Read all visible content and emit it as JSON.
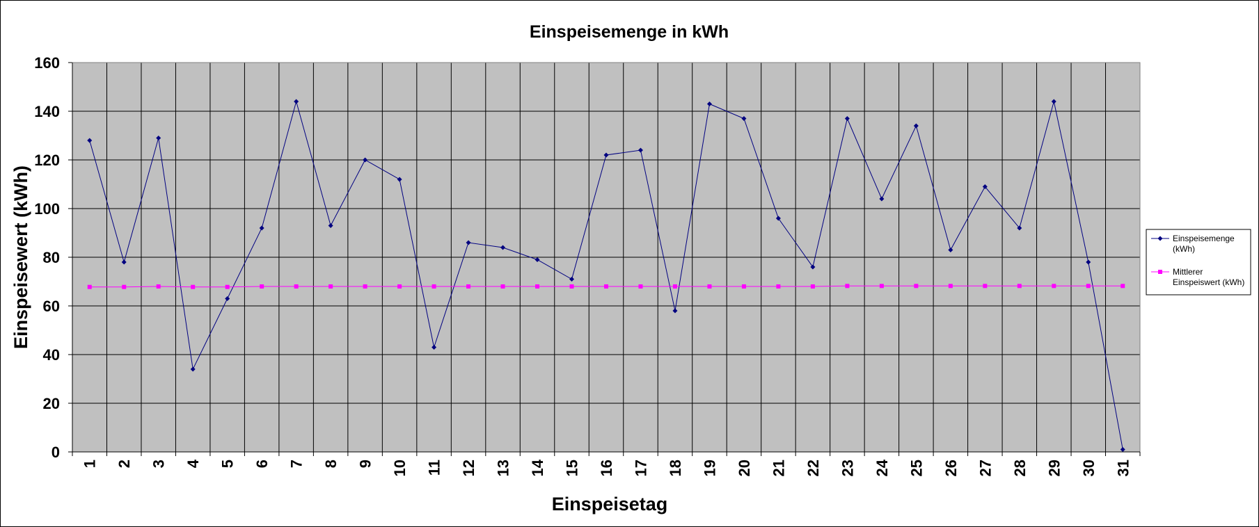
{
  "chart_data": {
    "type": "line",
    "title": "Einspeisemenge in kWh",
    "xlabel": "Einspeisetag",
    "ylabel": "Einspeisewert  (kWh)",
    "x": [
      1,
      2,
      3,
      4,
      5,
      6,
      7,
      8,
      9,
      10,
      11,
      12,
      13,
      14,
      15,
      16,
      17,
      18,
      19,
      20,
      21,
      22,
      23,
      24,
      25,
      26,
      27,
      28,
      29,
      30,
      31
    ],
    "ylim": [
      0,
      160
    ],
    "yticks": [
      0,
      20,
      40,
      60,
      80,
      100,
      120,
      140,
      160
    ],
    "grid": true,
    "legend_position": "right",
    "plot_background": "#c0c0c0",
    "series": [
      {
        "name": "Einspeisemenge (kWh)",
        "legend_lines": [
          "Einspeisemenge",
          "(kWh)"
        ],
        "color": "#000080",
        "marker": "diamond",
        "values": [
          128,
          78,
          129,
          34,
          63,
          92,
          144,
          93,
          120,
          112,
          43,
          86,
          84,
          79,
          71,
          122,
          124,
          58,
          143,
          137,
          96,
          76,
          137,
          104,
          134,
          83,
          109,
          92,
          144,
          78,
          1
        ]
      },
      {
        "name": "Mittlerer Einspeiswert (kWh)",
        "legend_lines": [
          "Mittlerer",
          "Einspeiswert (kWh)"
        ],
        "color": "#ff00ff",
        "marker": "square",
        "values": [
          67.8,
          67.8,
          68,
          67.8,
          67.8,
          68,
          68,
          68,
          68,
          68,
          68,
          68,
          68,
          68,
          68,
          68,
          68,
          68,
          68,
          68,
          68,
          68,
          68.2,
          68.2,
          68.2,
          68.2,
          68.2,
          68.2,
          68.2,
          68.2,
          68.2
        ]
      }
    ]
  }
}
